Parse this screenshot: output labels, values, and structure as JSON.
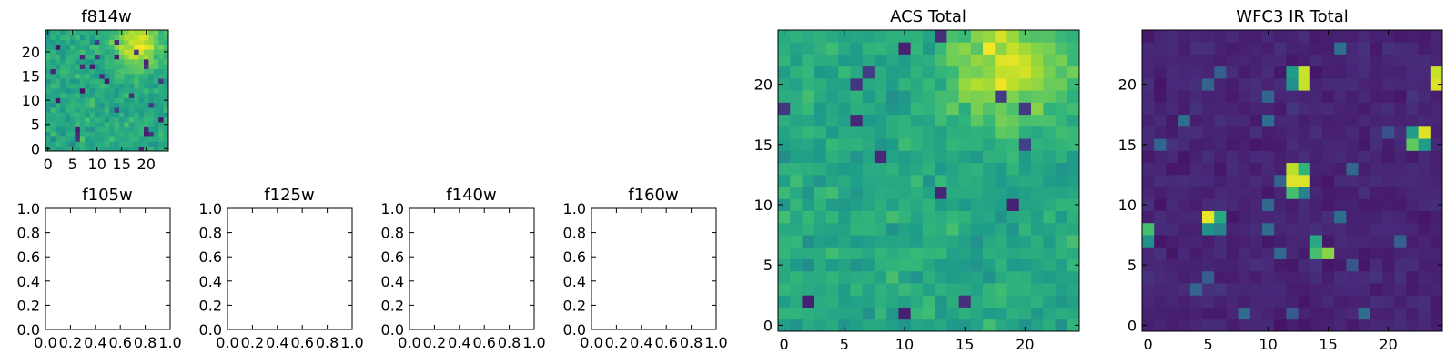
{
  "chart_data": [
    {
      "id": "f814w",
      "type": "heatmap",
      "title": "f814w",
      "size": 25,
      "colormap": "viridis",
      "xticks": [
        0,
        5,
        10,
        15,
        20
      ],
      "yticks": [
        0,
        5,
        10,
        15,
        20
      ],
      "xlim": [
        -0.5,
        24.5
      ],
      "ylim": [
        -0.5,
        24.5
      ],
      "pattern": "acs",
      "seed": 11
    },
    {
      "id": "f105w",
      "type": "empty",
      "title": "f105w",
      "xticks": [
        "0.0",
        "0.2",
        "0.4",
        "0.6",
        "0.8",
        "1.0"
      ],
      "yticks": [
        "0.0",
        "0.2",
        "0.4",
        "0.6",
        "0.8",
        "1.0"
      ],
      "xlim": [
        0,
        1
      ],
      "ylim": [
        0,
        1
      ]
    },
    {
      "id": "f125w",
      "type": "empty",
      "title": "f125w",
      "xticks": [
        "0.0",
        "0.2",
        "0.4",
        "0.6",
        "0.8",
        "1.0"
      ],
      "yticks": [
        "0.0",
        "0.2",
        "0.4",
        "0.6",
        "0.8",
        "1.0"
      ],
      "xlim": [
        0,
        1
      ],
      "ylim": [
        0,
        1
      ]
    },
    {
      "id": "f140w",
      "type": "empty",
      "title": "f140w",
      "xticks": [
        "0.0",
        "0.2",
        "0.4",
        "0.6",
        "0.8",
        "1.0"
      ],
      "yticks": [
        "0.0",
        "0.2",
        "0.4",
        "0.6",
        "0.8",
        "1.0"
      ],
      "xlim": [
        0,
        1
      ],
      "ylim": [
        0,
        1
      ]
    },
    {
      "id": "f160w",
      "type": "empty",
      "title": "f160w",
      "xticks": [
        "0.0",
        "0.2",
        "0.4",
        "0.6",
        "0.8",
        "1.0"
      ],
      "yticks": [
        "0.0",
        "0.2",
        "0.4",
        "0.6",
        "0.8",
        "1.0"
      ],
      "xlim": [
        0,
        1
      ],
      "ylim": [
        0,
        1
      ]
    },
    {
      "id": "acs-total",
      "type": "heatmap",
      "title": "ACS Total",
      "size": 25,
      "colormap": "viridis",
      "xticks": [
        0,
        5,
        10,
        15,
        20
      ],
      "yticks": [
        0,
        5,
        10,
        15,
        20
      ],
      "xlim": [
        -0.5,
        24.5
      ],
      "ylim": [
        -0.5,
        24.5
      ],
      "pattern": "acs",
      "seed": 37
    },
    {
      "id": "wfc3-ir-total",
      "type": "heatmap",
      "title": "WFC3 IR Total",
      "size": 25,
      "colormap": "viridis",
      "xticks": [
        0,
        5,
        10,
        15,
        20
      ],
      "yticks": [
        0,
        5,
        10,
        15,
        20
      ],
      "xlim": [
        -0.5,
        24.5
      ],
      "ylim": [
        -0.5,
        24.5
      ],
      "pattern": "ir",
      "seed": 5,
      "bright_pixels": [
        {
          "x": 13,
          "y": 21,
          "v": 0.92
        },
        {
          "x": 13,
          "y": 20,
          "v": 0.92
        },
        {
          "x": 12,
          "y": 21,
          "v": 0.55
        },
        {
          "x": 12,
          "y": 20,
          "v": 0.5
        },
        {
          "x": 24,
          "y": 21,
          "v": 0.92
        },
        {
          "x": 24,
          "y": 20,
          "v": 0.95
        },
        {
          "x": 23,
          "y": 16,
          "v": 0.95
        },
        {
          "x": 22,
          "y": 16,
          "v": 0.55
        },
        {
          "x": 22,
          "y": 15,
          "v": 0.75
        },
        {
          "x": 23,
          "y": 15,
          "v": 0.55
        },
        {
          "x": 12,
          "y": 13,
          "v": 0.9
        },
        {
          "x": 13,
          "y": 13,
          "v": 0.65
        },
        {
          "x": 12,
          "y": 12,
          "v": 0.95
        },
        {
          "x": 13,
          "y": 12,
          "v": 0.95
        },
        {
          "x": 12,
          "y": 11,
          "v": 0.7
        },
        {
          "x": 13,
          "y": 11,
          "v": 0.45
        },
        {
          "x": 5,
          "y": 9,
          "v": 0.97
        },
        {
          "x": 6,
          "y": 9,
          "v": 0.6
        },
        {
          "x": 5,
          "y": 8,
          "v": 0.5
        },
        {
          "x": 6,
          "y": 8,
          "v": 0.45
        },
        {
          "x": 0,
          "y": 8,
          "v": 0.7
        },
        {
          "x": 0,
          "y": 7,
          "v": 0.5
        },
        {
          "x": 14,
          "y": 7,
          "v": 0.6
        },
        {
          "x": 14,
          "y": 6,
          "v": 0.7
        },
        {
          "x": 15,
          "y": 6,
          "v": 0.82
        }
      ]
    }
  ]
}
